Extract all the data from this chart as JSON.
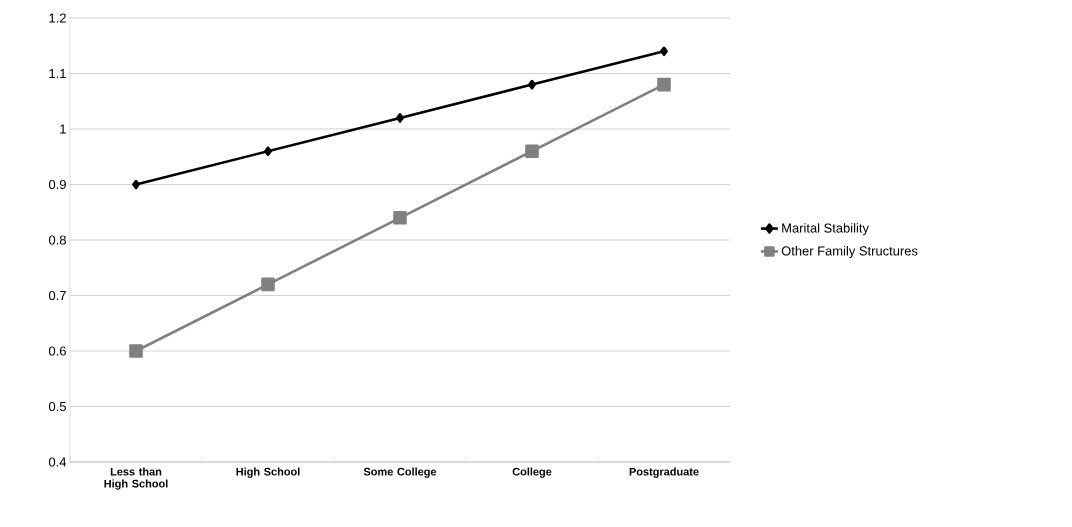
{
  "chart_data": {
    "type": "line",
    "categories": [
      "Less than High School",
      "High School",
      "Some College",
      "College",
      "Postgraduate"
    ],
    "series": [
      {
        "name": "Marital Stability",
        "color": "#000000",
        "marker": "diamond",
        "values": [
          0.9,
          0.96,
          1.02,
          1.08,
          1.14
        ]
      },
      {
        "name": "Other Family Structures",
        "color": "#808080",
        "marker": "square",
        "values": [
          0.6,
          0.72,
          0.84,
          0.96,
          1.08
        ]
      }
    ],
    "ylim": [
      0.4,
      1.2
    ],
    "yticks": [
      0.4,
      0.5,
      0.6,
      0.7,
      0.8,
      0.9,
      {
        "value": 1,
        "label": "1"
      },
      1.1,
      1.2
    ],
    "grid": "y",
    "legend": "right",
    "line_style": "solid"
  }
}
